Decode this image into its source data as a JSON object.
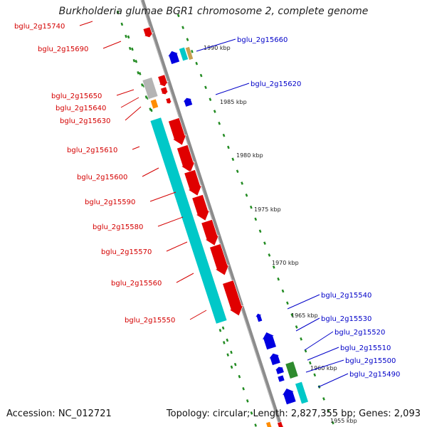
{
  "title": "Burkholderia glumae BGR1 chromosome 2, complete genome",
  "footer": {
    "accession": "Accession: NC_012721",
    "topology": "Topology: circular; Length: 2,827,355 bp; Genes: 2,093"
  },
  "colors": {
    "left_labels": "#d40000",
    "right_labels": "#0000c8",
    "backbone": "#8c8c8c",
    "tick": "#228b22"
  },
  "position_labels": [
    "1990 kbp",
    "1985 kbp",
    "1980 kbp",
    "1975 kbp",
    "1970 kbp",
    "1965 kbp",
    "1960 kbp",
    "1955 kbp"
  ],
  "left_genes": [
    {
      "id": "bglu_2g15740",
      "color": "#e00000"
    },
    {
      "id": "bglu_2g15690",
      "color": "#e00000"
    },
    {
      "id": "bglu_2g15650",
      "color": "#e00000"
    },
    {
      "id": "bglu_2g15640",
      "color": "#e00000"
    },
    {
      "id": "bglu_2g15630",
      "color": "#e00000"
    },
    {
      "id": "bglu_2g15610",
      "color": "#e00000"
    },
    {
      "id": "bglu_2g15600",
      "color": "#e00000"
    },
    {
      "id": "bglu_2g15590",
      "color": "#e00000"
    },
    {
      "id": "bglu_2g15580",
      "color": "#e00000"
    },
    {
      "id": "bglu_2g15570",
      "color": "#e00000"
    },
    {
      "id": "bglu_2g15560",
      "color": "#e00000"
    },
    {
      "id": "bglu_2g15550",
      "color": "#e00000"
    }
  ],
  "right_genes": [
    {
      "id": "bglu_2g15660",
      "color": "#0000d0"
    },
    {
      "id": "bglu_2g15620",
      "color": "#0000d0"
    },
    {
      "id": "bglu_2g15540",
      "color": "#0000d0"
    },
    {
      "id": "bglu_2g15530",
      "color": "#0000d0"
    },
    {
      "id": "bglu_2g15520",
      "color": "#0000d0"
    },
    {
      "id": "bglu_2g15510",
      "color": "#0000d0"
    },
    {
      "id": "bglu_2g15500",
      "color": "#0000d0"
    },
    {
      "id": "bglu_2g15490",
      "color": "#0000d0"
    }
  ],
  "feature_colors": {
    "cds_forward": "#e00000",
    "cds_reverse": "#0000e0",
    "rna": "#00c8c8",
    "pseudogene": "#b4b4b4",
    "other": "#ff8c00",
    "misc": "#2e8b2e",
    "tan": "#c8a050"
  }
}
